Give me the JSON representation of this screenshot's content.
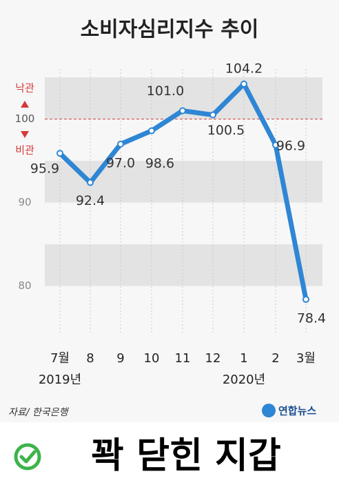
{
  "chart_data": {
    "type": "line",
    "title": "소비자심리지수 추이",
    "categories": [
      "7월",
      "8",
      "9",
      "10",
      "11",
      "12",
      "1",
      "2",
      "3월"
    ],
    "year_labels": [
      {
        "index": 0,
        "label": "2019년"
      },
      {
        "index": 6,
        "label": "2020년"
      }
    ],
    "series": [
      {
        "name": "소비자심리지수",
        "color": "#2f86d4",
        "values": [
          95.9,
          92.4,
          97.0,
          98.6,
          101.0,
          100.5,
          104.2,
          96.9,
          78.4
        ],
        "value_labels": [
          "95.9",
          "92.4",
          "97.0",
          "98.6",
          "101.0",
          "100.5",
          "104.2",
          "96.9",
          "78.4"
        ]
      }
    ],
    "ylim": [
      76,
      106
    ],
    "yticks": [
      80,
      90,
      100
    ],
    "bands": [
      [
        100,
        105
      ],
      [
        90,
        95
      ],
      [
        80,
        85
      ]
    ],
    "reference_line": 100,
    "annotations": {
      "optimistic": "낙관",
      "pessimistic": "비관"
    },
    "source": "자료/ 한국은행",
    "credit": "연합뉴스"
  },
  "caption": "꽉 닫힌 지갑"
}
